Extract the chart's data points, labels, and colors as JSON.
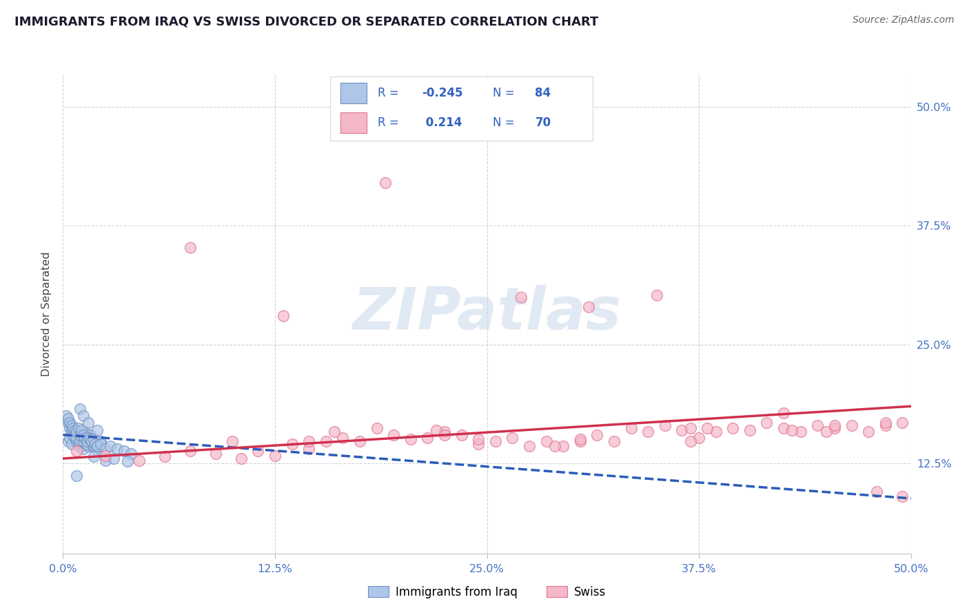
{
  "title": "IMMIGRANTS FROM IRAQ VS SWISS DIVORCED OR SEPARATED CORRELATION CHART",
  "source": "Source: ZipAtlas.com",
  "ylabel": "Divorced or Separated",
  "watermark": "ZIPatlas",
  "background_color": "#ffffff",
  "grid_color": "#c8d0d8",
  "title_color": "#1a1a2e",
  "axis_tick_color": "#4472c4",
  "ylabel_color": "#444444",
  "blue_scatter_facecolor": "#aec6e8",
  "blue_scatter_edgecolor": "#7090c0",
  "pink_scatter_facecolor": "#f5b8c8",
  "pink_scatter_edgecolor": "#e07090",
  "blue_line_color": "#2a5cb8",
  "pink_line_color": "#d0304e",
  "legend_text_color": "#3060c0",
  "R_blue": "-0.245",
  "N_blue": "84",
  "R_pink": "0.214",
  "N_pink": "70",
  "legend_blue_label": "Immigrants from Iraq",
  "legend_pink_label": "Swiss",
  "xmin": 0.0,
  "xmax": 0.5,
  "ymin": 0.03,
  "ymax": 0.535,
  "xtick_positions": [
    0.0,
    0.125,
    0.25,
    0.375,
    0.5
  ],
  "xtick_labels": [
    "0.0%",
    "12.5%",
    "25.0%",
    "37.5%",
    "50.0%"
  ],
  "ytick_positions": [
    0.125,
    0.25,
    0.375,
    0.5
  ],
  "ytick_labels": [
    "12.5%",
    "25.0%",
    "37.5%",
    "50.0%"
  ],
  "blue_trend_x": [
    0.0,
    0.5
  ],
  "blue_trend_y": [
    0.155,
    0.088
  ],
  "pink_trend_x": [
    0.0,
    0.5
  ],
  "pink_trend_y": [
    0.13,
    0.185
  ],
  "blue_x": [
    0.003,
    0.004,
    0.005,
    0.005,
    0.006,
    0.006,
    0.007,
    0.007,
    0.008,
    0.008,
    0.009,
    0.009,
    0.01,
    0.01,
    0.011,
    0.011,
    0.012,
    0.012,
    0.013,
    0.013,
    0.014,
    0.014,
    0.015,
    0.015,
    0.016,
    0.016,
    0.017,
    0.018,
    0.019,
    0.02,
    0.003,
    0.004,
    0.005,
    0.006,
    0.007,
    0.008,
    0.009,
    0.01,
    0.011,
    0.012,
    0.013,
    0.014,
    0.015,
    0.016,
    0.017,
    0.018,
    0.019,
    0.02,
    0.021,
    0.022,
    0.002,
    0.003,
    0.004,
    0.005,
    0.006,
    0.007,
    0.008,
    0.009,
    0.01,
    0.011,
    0.012,
    0.013,
    0.014,
    0.015,
    0.016,
    0.017,
    0.018,
    0.019,
    0.02,
    0.022,
    0.025,
    0.028,
    0.032,
    0.036,
    0.04,
    0.018,
    0.025,
    0.03,
    0.038,
    0.01,
    0.012,
    0.015,
    0.02,
    0.008
  ],
  "blue_y": [
    0.148,
    0.152,
    0.145,
    0.16,
    0.155,
    0.162,
    0.152,
    0.158,
    0.148,
    0.155,
    0.145,
    0.152,
    0.142,
    0.148,
    0.148,
    0.155,
    0.14,
    0.148,
    0.15,
    0.158,
    0.145,
    0.152,
    0.143,
    0.15,
    0.148,
    0.155,
    0.145,
    0.142,
    0.145,
    0.14,
    0.168,
    0.162,
    0.158,
    0.155,
    0.16,
    0.152,
    0.158,
    0.148,
    0.155,
    0.148,
    0.152,
    0.145,
    0.15,
    0.148,
    0.148,
    0.143,
    0.148,
    0.145,
    0.143,
    0.148,
    0.175,
    0.172,
    0.168,
    0.165,
    0.162,
    0.16,
    0.158,
    0.162,
    0.155,
    0.16,
    0.155,
    0.152,
    0.148,
    0.152,
    0.15,
    0.148,
    0.15,
    0.145,
    0.143,
    0.145,
    0.14,
    0.143,
    0.14,
    0.138,
    0.135,
    0.132,
    0.128,
    0.13,
    0.127,
    0.182,
    0.175,
    0.168,
    0.16,
    0.112
  ],
  "pink_x": [
    0.008,
    0.025,
    0.045,
    0.06,
    0.075,
    0.09,
    0.105,
    0.115,
    0.125,
    0.135,
    0.145,
    0.155,
    0.165,
    0.175,
    0.185,
    0.195,
    0.205,
    0.215,
    0.225,
    0.235,
    0.245,
    0.255,
    0.265,
    0.275,
    0.285,
    0.295,
    0.305,
    0.315,
    0.325,
    0.335,
    0.345,
    0.355,
    0.365,
    0.375,
    0.385,
    0.395,
    0.405,
    0.415,
    0.425,
    0.435,
    0.445,
    0.455,
    0.465,
    0.475,
    0.485,
    0.495,
    0.19,
    0.31,
    0.27,
    0.13,
    0.075,
    0.35,
    0.425,
    0.48,
    0.495,
    0.16,
    0.22,
    0.29,
    0.38,
    0.45,
    0.1,
    0.245,
    0.37,
    0.43,
    0.485,
    0.145,
    0.225,
    0.305,
    0.37,
    0.455
  ],
  "pink_y": [
    0.138,
    0.133,
    0.128,
    0.132,
    0.138,
    0.135,
    0.13,
    0.138,
    0.133,
    0.145,
    0.14,
    0.148,
    0.152,
    0.148,
    0.162,
    0.155,
    0.15,
    0.152,
    0.158,
    0.155,
    0.145,
    0.148,
    0.152,
    0.143,
    0.148,
    0.143,
    0.148,
    0.155,
    0.148,
    0.162,
    0.158,
    0.165,
    0.16,
    0.152,
    0.158,
    0.162,
    0.16,
    0.168,
    0.162,
    0.158,
    0.165,
    0.162,
    0.165,
    0.158,
    0.165,
    0.168,
    0.42,
    0.29,
    0.3,
    0.28,
    0.352,
    0.302,
    0.178,
    0.095,
    0.09,
    0.158,
    0.16,
    0.143,
    0.162,
    0.158,
    0.148,
    0.15,
    0.148,
    0.16,
    0.168,
    0.148,
    0.155,
    0.15,
    0.162,
    0.165
  ]
}
